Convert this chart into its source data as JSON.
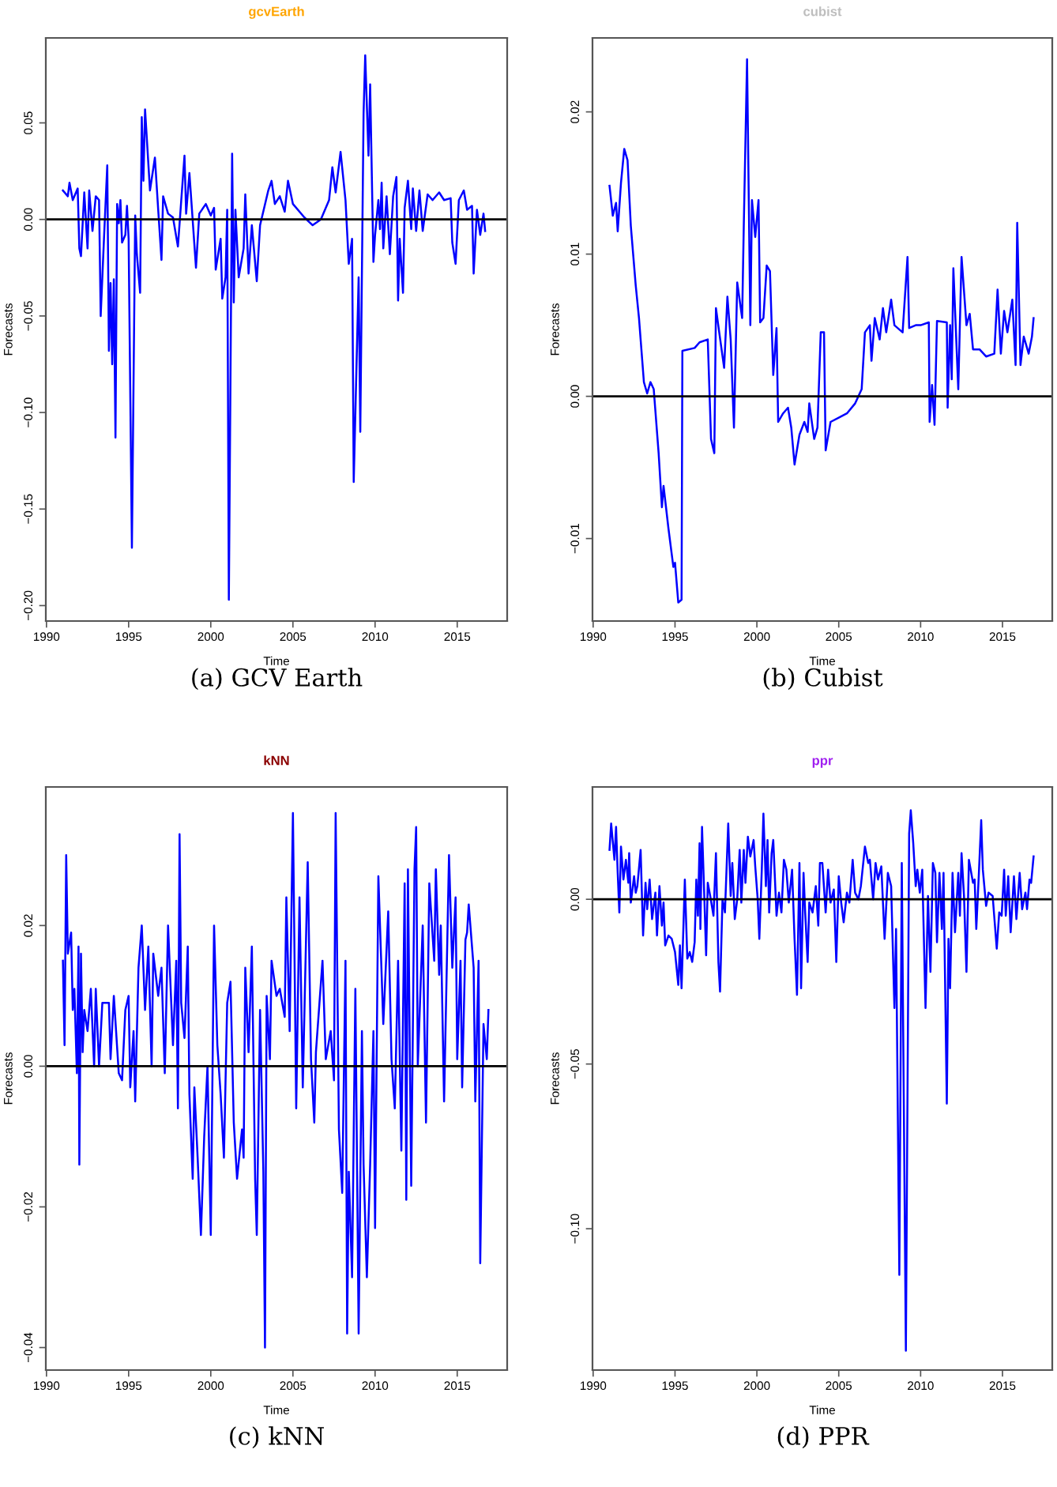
{
  "chart_data": [
    {
      "type": "line",
      "title": "gcvEarth",
      "xlabel": "Time",
      "ylabel": "Forecasts",
      "annotations": [
        "(a) GCV Earth"
      ],
      "xlim": [
        1989.96,
        2018.04
      ],
      "ylim": [
        -0.208,
        0.094
      ],
      "xticks": [
        1990,
        1995,
        2000,
        2005,
        2010,
        2015
      ],
      "yticks": [
        {
          "value": -0.2,
          "label": "−0.20"
        },
        {
          "value": -0.15,
          "label": "−0.15"
        },
        {
          "value": -0.1,
          "label": "−0.10"
        },
        {
          "value": -0.05,
          "label": "−0.05"
        },
        {
          "value": 0,
          "label": "0.00"
        },
        {
          "value": 0.05,
          "label": "0.05"
        }
      ],
      "ref_lines": [
        {
          "axis": "y",
          "value": 0,
          "color": "#000000"
        }
      ],
      "series": [
        {
          "color": "#0000ff",
          "x": [
            1991.0,
            1991.3,
            1991.4,
            1991.6,
            1991.9,
            1992.0,
            1992.1,
            1992.3,
            1992.5,
            1992.6,
            1992.8,
            1993.0,
            1993.2,
            1993.3,
            1993.5,
            1993.7,
            1993.8,
            1993.9,
            1994.0,
            1994.1,
            1994.2,
            1994.3,
            1994.4,
            1994.5,
            1994.6,
            1994.8,
            1994.9,
            1995.0,
            1995.2,
            1995.4,
            1995.5,
            1995.7,
            1995.8,
            1995.9,
            1996.0,
            1996.3,
            1996.6,
            1996.8,
            1997.0,
            1997.1,
            1997.4,
            1997.7,
            1998.0,
            1998.4,
            1998.5,
            1998.7,
            1999.1,
            1999.3,
            1999.7,
            2000.0,
            2000.2,
            2000.3,
            2000.6,
            2000.7,
            2000.9,
            2001.0,
            2001.1,
            2001.3,
            2001.4,
            2001.5,
            2001.7,
            2002.0,
            2002.1,
            2002.3,
            2002.5,
            2002.8,
            2003.0,
            2003.5,
            2003.7,
            2003.9,
            2004.2,
            2004.5,
            2004.7,
            2005.0,
            2005.7,
            2006.2,
            2006.7,
            2007.2,
            2007.4,
            2007.6,
            2007.9,
            2008.2,
            2008.4,
            2008.6,
            2008.7,
            2009.0,
            2009.1,
            2009.3,
            2009.4,
            2009.6,
            2009.7,
            2009.9,
            2010.0,
            2010.2,
            2010.3,
            2010.4,
            2010.5,
            2010.7,
            2010.9,
            2011.1,
            2011.3,
            2011.4,
            2011.5,
            2011.7,
            2011.8,
            2012.0,
            2012.2,
            2012.3,
            2012.5,
            2012.7,
            2012.9,
            2013.2,
            2013.5,
            2013.9,
            2014.2,
            2014.6,
            2014.7,
            2014.9,
            2015.1,
            2015.4,
            2015.6,
            2015.9,
            2016.0,
            2016.2,
            2016.4,
            2016.6,
            2016.7
          ],
          "values": [
            0.015,
            0.012,
            0.019,
            0.01,
            0.016,
            -0.015,
            -0.019,
            0.014,
            -0.015,
            0.015,
            -0.006,
            0.012,
            0.01,
            -0.05,
            -0.01,
            0.028,
            -0.068,
            -0.033,
            -0.075,
            -0.031,
            -0.113,
            0.008,
            -0.002,
            0.01,
            -0.012,
            -0.008,
            0.007,
            -0.01,
            -0.17,
            0.002,
            -0.018,
            -0.038,
            0.053,
            0.02,
            0.057,
            0.015,
            0.032,
            0.005,
            -0.021,
            0.012,
            0.003,
            0.001,
            -0.014,
            0.033,
            0.003,
            0.024,
            -0.025,
            0.003,
            0.008,
            0.002,
            0.006,
            -0.026,
            -0.01,
            -0.041,
            -0.03,
            0.005,
            -0.197,
            0.034,
            -0.043,
            0.005,
            -0.03,
            -0.015,
            0.013,
            -0.028,
            -0.003,
            -0.032,
            -0.003,
            0.015,
            0.02,
            0.008,
            0.012,
            0.004,
            0.02,
            0.008,
            0.001,
            -0.003,
            0.0,
            0.01,
            0.027,
            0.014,
            0.035,
            0.01,
            -0.023,
            -0.01,
            -0.136,
            -0.03,
            -0.11,
            0.055,
            0.085,
            0.033,
            0.07,
            -0.022,
            -0.008,
            0.01,
            -0.005,
            0.019,
            -0.015,
            0.012,
            -0.018,
            0.012,
            0.022,
            -0.042,
            -0.01,
            -0.038,
            0.006,
            0.02,
            -0.005,
            0.016,
            -0.006,
            0.015,
            -0.006,
            0.013,
            0.01,
            0.014,
            0.01,
            0.011,
            -0.012,
            -0.023,
            0.01,
            0.015,
            0.005,
            0.007,
            -0.028,
            0.005,
            -0.008,
            0.003,
            -0.006
          ]
        }
      ]
    },
    {
      "type": "line",
      "title": "cubist",
      "xlabel": "Time",
      "ylabel": "Forecasts",
      "annotations": [
        "(b) Cubist"
      ],
      "xlim": [
        1989.96,
        2018.04
      ],
      "ylim": [
        -0.0158,
        0.0252
      ],
      "xticks": [
        1990,
        1995,
        2000,
        2005,
        2010,
        2015
      ],
      "yticks": [
        {
          "value": -0.01,
          "label": "−0.01"
        },
        {
          "value": 0,
          "label": "0.00"
        },
        {
          "value": 0.01,
          "label": "0.01"
        },
        {
          "value": 0.02,
          "label": "0.02"
        }
      ],
      "ref_lines": [
        {
          "axis": "y",
          "value": 0,
          "color": "#000000"
        }
      ],
      "series": [
        {
          "color": "#0000ff",
          "x": [
            1991.0,
            1991.2,
            1991.4,
            1991.5,
            1991.7,
            1991.9,
            1992.1,
            1992.3,
            1992.6,
            1992.8,
            1993.1,
            1993.3,
            1993.5,
            1993.7,
            1994.0,
            1994.2,
            1994.3,
            1994.6,
            1994.9,
            1995.0,
            1995.2,
            1995.4,
            1995.45,
            1996.2,
            1996.5,
            1997.0,
            1997.2,
            1997.4,
            1997.5,
            1997.7,
            1998.0,
            1998.2,
            1998.4,
            1998.6,
            1998.8,
            1999.1,
            1999.2,
            1999.4,
            1999.6,
            1999.7,
            1999.9,
            2000.1,
            2000.2,
            2000.4,
            2000.6,
            2000.8,
            2001.0,
            2001.2,
            2001.3,
            2001.6,
            2001.9,
            2002.1,
            2002.3,
            2002.6,
            2002.9,
            2003.1,
            2003.2,
            2003.5,
            2003.7,
            2003.9,
            2004.1,
            2004.2,
            2004.5,
            2005.0,
            2005.5,
            2006.0,
            2006.4,
            2006.6,
            2006.9,
            2007.0,
            2007.2,
            2007.5,
            2007.7,
            2007.9,
            2008.2,
            2008.4,
            2008.9,
            2009.2,
            2009.3,
            2009.7,
            2010.0,
            2010.5,
            2010.55,
            2010.7,
            2010.85,
            2011.0,
            2011.6,
            2011.65,
            2011.8,
            2011.9,
            2012.0,
            2012.3,
            2012.5,
            2012.8,
            2013.0,
            2013.2,
            2013.6,
            2014.0,
            2014.5,
            2014.7,
            2014.9,
            2015.1,
            2015.3,
            2015.6,
            2015.8,
            2015.9,
            2016.1,
            2016.3,
            2016.6,
            2016.8,
            2016.9
          ],
          "values": [
            0.0148,
            0.0127,
            0.0136,
            0.0116,
            0.015,
            0.0174,
            0.0166,
            0.012,
            0.0078,
            0.0055,
            0.001,
            0.0002,
            0.001,
            0.0005,
            -0.004,
            -0.0078,
            -0.0063,
            -0.0093,
            -0.012,
            -0.0117,
            -0.0145,
            -0.0143,
            0.0032,
            0.0034,
            0.0038,
            0.004,
            -0.003,
            -0.004,
            0.0062,
            0.0045,
            0.002,
            0.007,
            0.004,
            -0.0022,
            0.008,
            0.0055,
            0.012,
            0.0237,
            0.005,
            0.0138,
            0.0112,
            0.0138,
            0.0052,
            0.0055,
            0.0092,
            0.0088,
            0.0015,
            0.0048,
            -0.0018,
            -0.0012,
            -0.0008,
            -0.0022,
            -0.0048,
            -0.0027,
            -0.0018,
            -0.0025,
            -0.0005,
            -0.003,
            -0.0022,
            0.0045,
            0.0045,
            -0.0038,
            -0.0018,
            -0.0015,
            -0.0012,
            -0.0005,
            0.0005,
            0.0045,
            0.005,
            0.0025,
            0.0055,
            0.004,
            0.0062,
            0.0045,
            0.0068,
            0.005,
            0.0045,
            0.0098,
            0.0048,
            0.005,
            0.005,
            0.0052,
            -0.0018,
            0.0008,
            -0.002,
            0.0053,
            0.0052,
            -0.0008,
            0.005,
            0.0012,
            0.009,
            0.0005,
            0.0098,
            0.005,
            0.0058,
            0.0033,
            0.0033,
            0.0028,
            0.003,
            0.0075,
            0.003,
            0.006,
            0.0045,
            0.0068,
            0.0022,
            0.0122,
            0.0022,
            0.0042,
            0.003,
            0.0042,
            0.0055
          ]
        }
      ]
    },
    {
      "type": "line",
      "title": "kNN",
      "xlabel": "Time",
      "ylabel": "Forecasts",
      "annotations": [
        "(c) kNN"
      ],
      "xlim": [
        1989.96,
        2018.04
      ],
      "ylim": [
        -0.0432,
        0.0397
      ],
      "xticks": [
        1990,
        1995,
        2000,
        2005,
        2010,
        2015
      ],
      "yticks": [
        {
          "value": -0.04,
          "label": "−0.04"
        },
        {
          "value": -0.02,
          "label": "−0.02"
        },
        {
          "value": 0,
          "label": "0.00"
        },
        {
          "value": 0.02,
          "label": "0.02"
        }
      ],
      "ref_lines": [
        {
          "axis": "y",
          "value": 0,
          "color": "#000000"
        }
      ],
      "series": [
        {
          "color": "#0000ff",
          "x": [
            1991.0,
            1991.1,
            1991.2,
            1991.3,
            1991.5,
            1991.6,
            1991.7,
            1991.85,
            1991.95,
            1992.0,
            1992.1,
            1992.2,
            1992.3,
            1992.5,
            1992.7,
            1992.9,
            1993.0,
            1993.2,
            1993.4,
            1993.8,
            1993.9,
            1994.1,
            1994.4,
            1994.6,
            1994.8,
            1995.0,
            1995.1,
            1995.3,
            1995.4,
            1995.6,
            1995.8,
            1996.0,
            1996.2,
            1996.4,
            1996.5,
            1996.8,
            1997.0,
            1997.2,
            1997.4,
            1997.7,
            1997.9,
            1998.0,
            1998.1,
            1998.2,
            1998.4,
            1998.6,
            1998.7,
            1998.9,
            1999.0,
            1999.2,
            1999.4,
            1999.6,
            1999.8,
            2000.0,
            2000.2,
            2000.4,
            2000.6,
            2000.8,
            2001.0,
            2001.2,
            2001.4,
            2001.6,
            2001.9,
            2002.0,
            2002.1,
            2002.3,
            2002.5,
            2002.7,
            2002.8,
            2003.0,
            2003.2,
            2003.3,
            2003.4,
            2003.6,
            2003.7,
            2004.0,
            2004.2,
            2004.5,
            2004.6,
            2004.8,
            2005.0,
            2005.2,
            2005.4,
            2005.6,
            2005.9,
            2006.1,
            2006.3,
            2006.4,
            2006.8,
            2007.0,
            2007.3,
            2007.5,
            2007.6,
            2007.8,
            2008.0,
            2008.2,
            2008.3,
            2008.4,
            2008.6,
            2008.8,
            2009.0,
            2009.2,
            2009.3,
            2009.5,
            2009.7,
            2009.9,
            2010.0,
            2010.2,
            2010.5,
            2010.8,
            2011.0,
            2011.2,
            2011.4,
            2011.6,
            2011.8,
            2011.9,
            2012.0,
            2012.2,
            2012.4,
            2012.5,
            2012.6,
            2012.9,
            2013.1,
            2013.3,
            2013.6,
            2013.7,
            2013.9,
            2014.0,
            2014.2,
            2014.5,
            2014.7,
            2014.9,
            2015.0,
            2015.2,
            2015.3,
            2015.5,
            2015.6,
            2015.7,
            2016.0,
            2016.1,
            2016.3,
            2016.4,
            2016.6,
            2016.8,
            2016.9
          ],
          "values": [
            0.015,
            0.003,
            0.03,
            0.016,
            0.019,
            0.008,
            0.011,
            -0.001,
            0.017,
            -0.014,
            0.016,
            0.002,
            0.008,
            0.005,
            0.011,
            0.0,
            0.011,
            0.0,
            0.009,
            0.009,
            0.001,
            0.01,
            -0.001,
            -0.002,
            0.008,
            0.01,
            -0.003,
            0.005,
            -0.005,
            0.014,
            0.02,
            0.008,
            0.017,
            0.0,
            0.016,
            0.01,
            0.014,
            -0.001,
            0.02,
            0.003,
            0.015,
            -0.006,
            0.033,
            0.009,
            0.004,
            0.017,
            -0.004,
            -0.016,
            -0.003,
            -0.013,
            -0.024,
            -0.01,
            0.0,
            -0.024,
            0.02,
            0.003,
            -0.004,
            -0.013,
            0.009,
            0.012,
            -0.008,
            -0.016,
            -0.009,
            -0.013,
            0.014,
            0.002,
            0.017,
            -0.016,
            -0.024,
            0.008,
            -0.015,
            -0.04,
            0.01,
            0.001,
            0.015,
            0.01,
            0.011,
            0.007,
            0.024,
            0.005,
            0.036,
            -0.006,
            0.024,
            -0.003,
            0.029,
            0.001,
            -0.008,
            0.002,
            0.015,
            0.001,
            0.005,
            -0.002,
            0.036,
            -0.009,
            -0.018,
            0.015,
            -0.038,
            -0.015,
            -0.03,
            0.011,
            -0.038,
            0.005,
            -0.014,
            -0.03,
            -0.014,
            0.005,
            -0.023,
            0.027,
            0.006,
            0.022,
            0.001,
            -0.006,
            0.015,
            -0.012,
            0.026,
            -0.019,
            0.028,
            -0.017,
            0.028,
            0.034,
            0.0,
            0.02,
            -0.008,
            0.026,
            0.015,
            0.028,
            0.013,
            0.02,
            -0.005,
            0.03,
            0.014,
            0.024,
            0.001,
            0.015,
            -0.003,
            0.018,
            0.019,
            0.023,
            0.014,
            -0.005,
            0.015,
            -0.028,
            0.006,
            0.001,
            0.008
          ]
        }
      ]
    },
    {
      "type": "line",
      "title": "ppr",
      "xlabel": "Time",
      "ylabel": "Forecasts",
      "annotations": [
        "(d) PPR"
      ],
      "xlim": [
        1989.96,
        2018.04
      ],
      "ylim": [
        -0.1429,
        0.0341
      ],
      "xticks": [
        1990,
        1995,
        2000,
        2005,
        2010,
        2015
      ],
      "yticks": [
        {
          "value": -0.1,
          "label": "−0.10"
        },
        {
          "value": -0.05,
          "label": "−0.05"
        },
        {
          "value": 0,
          "label": "0.00"
        }
      ],
      "ref_lines": [
        {
          "axis": "y",
          "value": 0,
          "color": "#000000"
        }
      ],
      "series": [
        {
          "color": "#0000ff",
          "x": [
            1991.0,
            1991.1,
            1991.3,
            1991.4,
            1991.5,
            1991.6,
            1991.7,
            1991.85,
            1992.0,
            1992.15,
            1992.2,
            1992.3,
            1992.5,
            1992.6,
            1992.7,
            1992.9,
            1993.05,
            1993.2,
            1993.3,
            1993.45,
            1993.6,
            1993.8,
            1993.9,
            1994.05,
            1994.2,
            1994.3,
            1994.4,
            1994.6,
            1994.8,
            1995.0,
            1995.2,
            1995.3,
            1995.4,
            1995.6,
            1995.75,
            1995.9,
            1996.05,
            1996.2,
            1996.3,
            1996.4,
            1996.5,
            1996.55,
            1996.65,
            1996.8,
            1996.9,
            1997.0,
            1997.15,
            1997.35,
            1997.5,
            1997.65,
            1997.75,
            1997.9,
            1998.05,
            1998.25,
            1998.4,
            1998.5,
            1998.65,
            1998.8,
            1998.95,
            1999.05,
            1999.2,
            1999.3,
            1999.45,
            1999.6,
            1999.8,
            1999.9,
            2000.05,
            2000.15,
            2000.3,
            2000.4,
            2000.55,
            2000.65,
            2000.75,
            2000.9,
            2001.0,
            2001.2,
            2001.35,
            2001.5,
            2001.65,
            2001.8,
            2001.95,
            2002.15,
            2002.3,
            2002.45,
            2002.6,
            2002.7,
            2002.85,
            2002.95,
            2003.1,
            2003.2,
            2003.4,
            2003.6,
            2003.75,
            2003.85,
            2004.0,
            2004.2,
            2004.35,
            2004.5,
            2004.7,
            2004.85,
            2005.0,
            2005.15,
            2005.3,
            2005.5,
            2005.65,
            2005.85,
            2006.0,
            2006.2,
            2006.35,
            2006.6,
            2006.8,
            2006.9,
            2007.1,
            2007.25,
            2007.4,
            2007.6,
            2007.8,
            2008.0,
            2008.2,
            2008.4,
            2008.5,
            2008.7,
            2008.85,
            2009.1,
            2009.3,
            2009.4,
            2009.55,
            2009.7,
            2009.8,
            2009.95,
            2010.1,
            2010.3,
            2010.45,
            2010.6,
            2010.75,
            2010.9,
            2011.0,
            2011.15,
            2011.3,
            2011.4,
            2011.6,
            2011.7,
            2011.8,
            2011.95,
            2012.1,
            2012.3,
            2012.4,
            2012.5,
            2012.65,
            2012.8,
            2012.95,
            2013.2,
            2013.3,
            2013.4,
            2013.55,
            2013.7,
            2013.8,
            2014.0,
            2014.15,
            2014.4,
            2014.65,
            2014.8,
            2014.95,
            2015.1,
            2015.2,
            2015.35,
            2015.5,
            2015.7,
            2015.85,
            2016.05,
            2016.2,
            2016.4,
            2016.5,
            2016.65,
            2016.75,
            2016.9
          ],
          "values": [
            0.015,
            0.023,
            0.012,
            0.022,
            0.008,
            -0.004,
            0.016,
            0.006,
            0.012,
            0.005,
            0.014,
            -0.001,
            0.007,
            0.002,
            0.004,
            0.015,
            -0.011,
            0.005,
            -0.003,
            0.006,
            -0.006,
            0.002,
            -0.011,
            0.004,
            -0.008,
            -0.001,
            -0.014,
            -0.011,
            -0.012,
            -0.016,
            -0.026,
            -0.014,
            -0.027,
            0.006,
            -0.018,
            -0.016,
            -0.019,
            -0.013,
            0.006,
            -0.005,
            0.017,
            -0.009,
            0.022,
            -0.001,
            -0.017,
            0.005,
            0.001,
            -0.005,
            0.014,
            -0.019,
            -0.028,
            0.0,
            -0.004,
            0.023,
            0.001,
            0.011,
            -0.006,
            0.0,
            0.015,
            -0.001,
            0.015,
            0.005,
            0.019,
            0.013,
            0.018,
            0.01,
            0.0,
            -0.012,
            0.009,
            0.026,
            0.004,
            0.018,
            -0.004,
            0.014,
            0.018,
            -0.005,
            0.002,
            -0.004,
            0.012,
            0.009,
            -0.001,
            0.009,
            -0.012,
            -0.029,
            0.011,
            -0.027,
            0.008,
            -0.004,
            -0.019,
            -0.001,
            -0.004,
            0.004,
            -0.008,
            0.011,
            0.011,
            -0.004,
            0.009,
            -0.001,
            0.003,
            -0.019,
            0.007,
            -0.001,
            -0.007,
            0.002,
            -0.001,
            0.012,
            0.002,
            0.0,
            0.004,
            0.016,
            0.011,
            0.012,
            0.0,
            0.011,
            0.006,
            0.01,
            -0.012,
            0.008,
            0.004,
            -0.033,
            -0.009,
            -0.114,
            0.011,
            -0.137,
            0.02,
            0.027,
            0.017,
            0.004,
            0.009,
            0.002,
            0.009,
            -0.033,
            0.001,
            -0.022,
            0.011,
            0.008,
            -0.013,
            0.008,
            -0.009,
            0.008,
            -0.062,
            -0.012,
            -0.027,
            0.008,
            -0.01,
            0.008,
            -0.005,
            0.014,
            0.001,
            -0.022,
            0.012,
            0.005,
            0.006,
            -0.009,
            0.007,
            0.024,
            0.009,
            -0.002,
            0.002,
            0.001,
            -0.015,
            -0.004,
            -0.005,
            0.009,
            -0.005,
            0.007,
            -0.01,
            0.007,
            -0.006,
            0.008,
            -0.003,
            0.002,
            -0.003,
            0.006,
            0.005,
            0.013
          ]
        }
      ]
    }
  ]
}
